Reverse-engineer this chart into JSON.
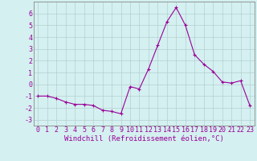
{
  "x": [
    0,
    1,
    2,
    3,
    4,
    5,
    6,
    7,
    8,
    9,
    10,
    11,
    12,
    13,
    14,
    15,
    16,
    17,
    18,
    19,
    20,
    21,
    22,
    23
  ],
  "y": [
    -1,
    -1,
    -1.2,
    -1.5,
    -1.7,
    -1.7,
    -1.8,
    -2.2,
    -2.3,
    -2.5,
    -0.2,
    -0.4,
    1.3,
    3.3,
    5.3,
    6.5,
    5.0,
    2.5,
    1.7,
    1.1,
    0.2,
    0.1,
    0.3,
    -1.8
  ],
  "line_color": "#990099",
  "marker": "+",
  "marker_color": "#990099",
  "bg_color": "#d4f0f0",
  "grid_color": "#adc8c8",
  "xlabel": "Windchill (Refroidissement éolien,°C)",
  "xlim_min": -0.5,
  "xlim_max": 23.5,
  "ylim_min": -3.5,
  "ylim_max": 7.0,
  "yticks": [
    -3,
    -2,
    -1,
    0,
    1,
    2,
    3,
    4,
    5,
    6
  ],
  "xticks": [
    0,
    1,
    2,
    3,
    4,
    5,
    6,
    7,
    8,
    9,
    10,
    11,
    12,
    13,
    14,
    15,
    16,
    17,
    18,
    19,
    20,
    21,
    22,
    23
  ],
  "xlabel_fontsize": 6.5,
  "tick_fontsize": 6,
  "axis_color": "#990099",
  "spine_color": "#888888",
  "line_width": 0.8,
  "marker_size": 3
}
